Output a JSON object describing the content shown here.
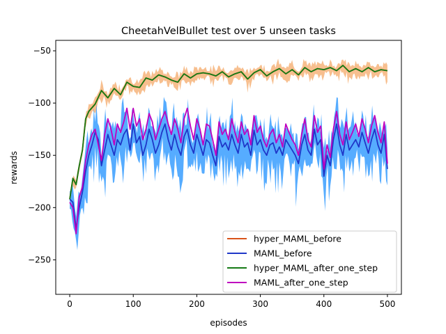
{
  "chart_data": {
    "type": "line",
    "title": "CheetahVelBullet test over 5 unseen tasks",
    "xlabel": "episodes",
    "ylabel": "rewards",
    "xlim": [
      -22,
      522
    ],
    "ylim": [
      -283,
      -40
    ],
    "xticks": [
      0,
      100,
      200,
      300,
      400,
      500
    ],
    "xtick_labels": [
      "0",
      "100",
      "200",
      "300",
      "400",
      "500"
    ],
    "yticks": [
      -250,
      -200,
      -150,
      -100,
      -50
    ],
    "ytick_labels": [
      "−250",
      "−200",
      "−150",
      "−100",
      "−50"
    ],
    "grid": false,
    "legend_position": "lower-right",
    "series": [
      {
        "name": "hyper_MAML_before",
        "color": "#d95319",
        "band_color": "#f4a460",
        "band_width": 8,
        "x": [
          0,
          5,
          10,
          15,
          20,
          25,
          30,
          40,
          50,
          60,
          70,
          80,
          90,
          100,
          110,
          120,
          130,
          140,
          150,
          160,
          170,
          180,
          190,
          200,
          210,
          220,
          230,
          240,
          250,
          260,
          270,
          280,
          290,
          300,
          310,
          320,
          330,
          340,
          350,
          360,
          370,
          380,
          390,
          400,
          410,
          420,
          430,
          440,
          450,
          460,
          470,
          480,
          490,
          500
        ],
        "values": [
          -192,
          -172,
          -178,
          -160,
          -145,
          -115,
          -108,
          -101,
          -88,
          -95,
          -86,
          -92,
          -80,
          -84,
          -85,
          -76,
          -78,
          -73,
          -75,
          -78,
          -80,
          -72,
          -76,
          -72,
          -71,
          -72,
          -74,
          -70,
          -75,
          -72,
          -70,
          -77,
          -71,
          -68,
          -74,
          -70,
          -67,
          -72,
          -68,
          -73,
          -66,
          -70,
          -67,
          -68,
          -66,
          -69,
          -64,
          -70,
          -67,
          -70,
          -66,
          -70,
          -68,
          -69
        ]
      },
      {
        "name": "MAML_before",
        "color": "#1f37c8",
        "band_color": "#1e90ff",
        "band_width": 28,
        "x": [
          0,
          5,
          10,
          15,
          20,
          25,
          30,
          35,
          40,
          45,
          50,
          55,
          60,
          65,
          70,
          75,
          80,
          85,
          90,
          95,
          100,
          105,
          110,
          115,
          120,
          125,
          130,
          135,
          140,
          145,
          150,
          155,
          160,
          165,
          170,
          175,
          180,
          185,
          190,
          195,
          200,
          205,
          210,
          215,
          220,
          225,
          230,
          235,
          240,
          245,
          250,
          255,
          260,
          265,
          270,
          275,
          280,
          285,
          290,
          295,
          300,
          305,
          310,
          315,
          320,
          325,
          330,
          335,
          340,
          345,
          350,
          355,
          360,
          365,
          370,
          375,
          380,
          385,
          390,
          395,
          400,
          405,
          410,
          415,
          420,
          425,
          430,
          435,
          440,
          445,
          450,
          455,
          460,
          465,
          470,
          475,
          480,
          485,
          490,
          495,
          500
        ],
        "values": [
          -192,
          -195,
          -220,
          -200,
          -185,
          -165,
          -150,
          -140,
          -128,
          -135,
          -160,
          -145,
          -130,
          -140,
          -150,
          -135,
          -140,
          -130,
          -125,
          -145,
          -120,
          -138,
          -132,
          -150,
          -140,
          -125,
          -135,
          -148,
          -140,
          -128,
          -120,
          -135,
          -145,
          -130,
          -142,
          -150,
          -132,
          -125,
          -140,
          -148,
          -130,
          -140,
          -150,
          -135,
          -138,
          -150,
          -160,
          -132,
          -142,
          -138,
          -145,
          -130,
          -140,
          -148,
          -130,
          -142,
          -138,
          -150,
          -126,
          -140,
          -135,
          -145,
          -150,
          -140,
          -138,
          -148,
          -142,
          -150,
          -135,
          -140,
          -145,
          -150,
          -158,
          -140,
          -130,
          -145,
          -150,
          -125,
          -140,
          -135,
          -170,
          -150,
          -160,
          -135,
          -120,
          -140,
          -150,
          -130,
          -145,
          -140,
          -135,
          -142,
          -128,
          -138,
          -148,
          -135,
          -125,
          -140,
          -148,
          -130,
          -163
        ]
      },
      {
        "name": "hyper_MAML_after_one_step",
        "color": "#157a15",
        "band_color": "#157a15",
        "band_width": 0,
        "x": [
          0,
          5,
          10,
          15,
          20,
          25,
          30,
          40,
          50,
          60,
          70,
          80,
          90,
          100,
          110,
          120,
          130,
          140,
          150,
          160,
          170,
          180,
          190,
          200,
          210,
          220,
          230,
          240,
          250,
          260,
          270,
          280,
          290,
          300,
          310,
          320,
          330,
          340,
          350,
          360,
          370,
          380,
          390,
          400,
          410,
          420,
          430,
          440,
          450,
          460,
          470,
          480,
          490,
          500
        ],
        "values": [
          -192,
          -172,
          -178,
          -160,
          -145,
          -115,
          -108,
          -101,
          -88,
          -95,
          -86,
          -92,
          -80,
          -84,
          -85,
          -76,
          -78,
          -73,
          -75,
          -78,
          -80,
          -72,
          -76,
          -72,
          -71,
          -72,
          -74,
          -70,
          -75,
          -72,
          -70,
          -77,
          -71,
          -68,
          -74,
          -70,
          -67,
          -72,
          -68,
          -73,
          -66,
          -70,
          -67,
          -68,
          -66,
          -69,
          -64,
          -70,
          -67,
          -70,
          -66,
          -70,
          -68,
          -69
        ]
      },
      {
        "name": "MAML_after_one_step",
        "color": "#bf00bf",
        "band_color": "#bf00bf",
        "band_width": 0,
        "x": [
          0,
          5,
          10,
          15,
          20,
          25,
          30,
          35,
          40,
          45,
          50,
          55,
          60,
          65,
          70,
          75,
          80,
          85,
          90,
          95,
          100,
          105,
          110,
          115,
          120,
          125,
          130,
          135,
          140,
          145,
          150,
          155,
          160,
          165,
          170,
          175,
          180,
          185,
          190,
          195,
          200,
          205,
          210,
          215,
          220,
          225,
          230,
          235,
          240,
          245,
          250,
          255,
          260,
          265,
          270,
          275,
          280,
          285,
          290,
          295,
          300,
          305,
          310,
          315,
          320,
          325,
          330,
          335,
          340,
          345,
          350,
          355,
          360,
          365,
          370,
          375,
          380,
          385,
          390,
          395,
          400,
          405,
          410,
          415,
          420,
          425,
          430,
          435,
          440,
          445,
          450,
          455,
          460,
          465,
          470,
          475,
          480,
          485,
          490,
          495,
          500
        ],
        "values": [
          -195,
          -200,
          -225,
          -190,
          -180,
          -155,
          -140,
          -130,
          -125,
          -140,
          -155,
          -130,
          -115,
          -125,
          -140,
          -120,
          -128,
          -118,
          -105,
          -125,
          -105,
          -122,
          -115,
          -135,
          -125,
          -110,
          -118,
          -135,
          -125,
          -115,
          -108,
          -120,
          -130,
          -115,
          -125,
          -138,
          -115,
          -105,
          -122,
          -135,
          -115,
          -125,
          -140,
          -120,
          -122,
          -135,
          -150,
          -118,
          -130,
          -125,
          -135,
          -115,
          -128,
          -138,
          -118,
          -130,
          -125,
          -140,
          -112,
          -128,
          -122,
          -135,
          -142,
          -130,
          -125,
          -138,
          -130,
          -142,
          -120,
          -128,
          -135,
          -140,
          -150,
          -130,
          -115,
          -135,
          -142,
          -112,
          -128,
          -122,
          -163,
          -140,
          -152,
          -125,
          -108,
          -130,
          -140,
          -118,
          -135,
          -128,
          -120,
          -132,
          -115,
          -125,
          -138,
          -122,
          -112,
          -128,
          -138,
          -118,
          -158
        ]
      }
    ]
  }
}
